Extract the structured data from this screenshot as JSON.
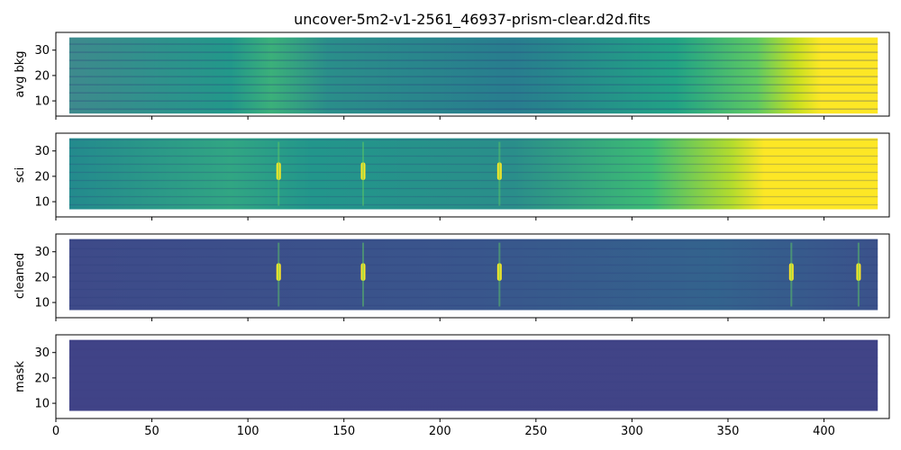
{
  "chart_data": {
    "type": "heatmap",
    "title": "uncover-5m2-v1-2561_46937-prism-clear.d2d.fits",
    "shared_x": true,
    "xlim": [
      0,
      434
    ],
    "ylim": [
      4,
      37
    ],
    "xticks": [
      0,
      50,
      100,
      150,
      200,
      250,
      300,
      350,
      400
    ],
    "yticks": [
      10,
      20,
      30
    ],
    "colormap": "viridis",
    "colors": {
      "background": "#440154",
      "low": "#3b528b",
      "mid": "#21918c",
      "high": "#5ec962",
      "saturated": "#fde725"
    },
    "panels": [
      {
        "ylabel": "avg bkg",
        "data_x_range": [
          7,
          428
        ],
        "data_y_range": [
          5,
          35
        ],
        "trend": "brightness increases toward large x, saturated (yellow) above x ≈ 385"
      },
      {
        "ylabel": "sci",
        "data_x_range": [
          7,
          428
        ],
        "data_y_range": [
          7,
          35
        ],
        "emission_features_x": [
          116,
          160,
          231
        ],
        "trend": "continuum rises toward large x, saturated above x ≈ 360"
      },
      {
        "ylabel": "cleaned",
        "data_x_range": [
          7,
          428
        ],
        "data_y_range": [
          7,
          35
        ],
        "emission_features_x": [
          116,
          160,
          231,
          383,
          418
        ]
      },
      {
        "ylabel": "mask",
        "data_x_range": [
          7,
          428
        ],
        "data_y_range": [
          7,
          35
        ],
        "trend": "nearly uniform low values"
      }
    ]
  }
}
